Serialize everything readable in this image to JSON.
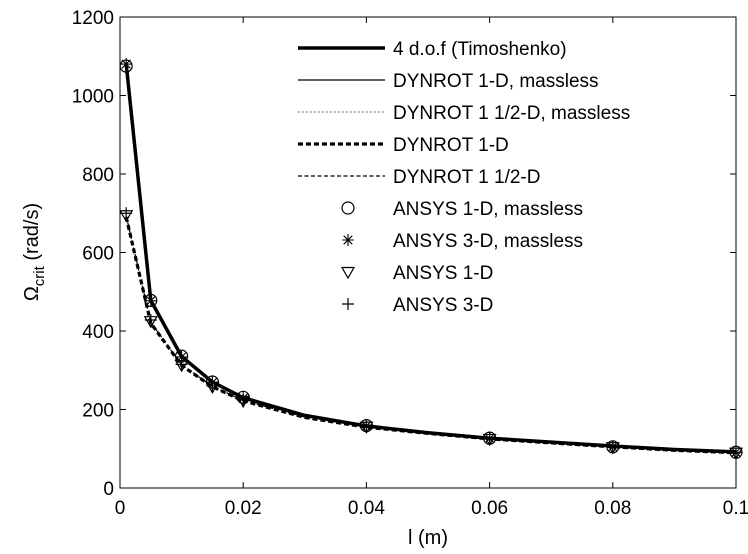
{
  "chart_data": {
    "type": "line",
    "xlabel": "l (m)",
    "ylabel_main": "Ω",
    "ylabel_sub": "crit",
    "ylabel_unit": " (rad/s)",
    "xlim": [
      0,
      0.1
    ],
    "ylim": [
      0,
      1200
    ],
    "xticks": [
      0,
      0.02,
      0.04,
      0.06,
      0.08,
      0.1
    ],
    "xtick_labels": [
      "0",
      "0.02",
      "0.04",
      "0.06",
      "0.08",
      "0.1"
    ],
    "yticks": [
      0,
      200,
      400,
      600,
      800,
      1000,
      1200
    ],
    "ytick_labels": [
      "0",
      "200",
      "400",
      "600",
      "800",
      "1000",
      "1200"
    ],
    "grid": false,
    "legend_position": "top-right",
    "series": [
      {
        "name": "4 d.o.f (Timoshenko)",
        "style": "line-thick",
        "x": [
          0.001,
          0.005,
          0.01,
          0.015,
          0.02,
          0.03,
          0.04,
          0.05,
          0.06,
          0.07,
          0.08,
          0.09,
          0.1
        ],
        "y": [
          1080,
          478,
          335,
          270,
          230,
          185,
          158,
          141,
          127,
          117,
          107,
          98,
          92
        ]
      },
      {
        "name": "DYNROT 1-D, massless",
        "style": "line-thin",
        "x": [
          0.001,
          0.005,
          0.01,
          0.015,
          0.02,
          0.03,
          0.04,
          0.05,
          0.06,
          0.07,
          0.08,
          0.09,
          0.1
        ],
        "y": [
          1080,
          476,
          333,
          268,
          228,
          184,
          157,
          140,
          126,
          116,
          106,
          97,
          91
        ]
      },
      {
        "name": "DYNROT 1 1/2-D, massless",
        "style": "dotted",
        "x": [
          0.001,
          0.005,
          0.01,
          0.015,
          0.02,
          0.03,
          0.04,
          0.05,
          0.06,
          0.07,
          0.08,
          0.09,
          0.1
        ],
        "y": [
          1082,
          474,
          332,
          267,
          227,
          183,
          157,
          140,
          126,
          116,
          106,
          97,
          91
        ]
      },
      {
        "name": "DYNROT 1-D",
        "style": "dashed-thick",
        "x": [
          0.001,
          0.005,
          0.01,
          0.015,
          0.02,
          0.03,
          0.04,
          0.05,
          0.06,
          0.07,
          0.08,
          0.09,
          0.1
        ],
        "y": [
          690,
          420,
          312,
          258,
          222,
          180,
          155,
          139,
          125,
          115,
          105,
          96,
          90
        ]
      },
      {
        "name": "DYNROT 1 1/2-D",
        "style": "dashed-thin",
        "x": [
          0.001,
          0.005,
          0.01,
          0.015,
          0.02,
          0.03,
          0.04,
          0.05,
          0.06,
          0.07,
          0.08,
          0.09,
          0.1
        ],
        "y": [
          693,
          422,
          314,
          259,
          223,
          181,
          156,
          139,
          125,
          115,
          105,
          96,
          90
        ]
      },
      {
        "name": "ANSYS 1-D, massless",
        "style": "circle",
        "x": [
          0.001,
          0.005,
          0.01,
          0.015,
          0.02,
          0.04,
          0.06,
          0.08,
          0.1
        ],
        "y": [
          1075,
          478,
          336,
          270,
          231,
          159,
          127,
          105,
          91
        ]
      },
      {
        "name": "ANSYS 3-D, massless",
        "style": "asterisk",
        "x": [
          0.001,
          0.005,
          0.01,
          0.015,
          0.02,
          0.04,
          0.06,
          0.08,
          0.1
        ],
        "y": [
          1080,
          477,
          334,
          269,
          229,
          158,
          126,
          105,
          91
        ]
      },
      {
        "name": "ANSYS 1-D",
        "style": "triangle-down",
        "x": [
          0.001,
          0.005,
          0.01,
          0.015,
          0.02,
          0.04,
          0.06,
          0.08,
          0.1
        ],
        "y": [
          695,
          425,
          313,
          258,
          222,
          156,
          125,
          104,
          90
        ]
      },
      {
        "name": "ANSYS 3-D",
        "style": "plus",
        "x": [
          0.001,
          0.005,
          0.01,
          0.015,
          0.02,
          0.04,
          0.06,
          0.08,
          0.1
        ],
        "y": [
          700,
          428,
          315,
          260,
          224,
          157,
          126,
          104,
          90
        ]
      }
    ]
  }
}
